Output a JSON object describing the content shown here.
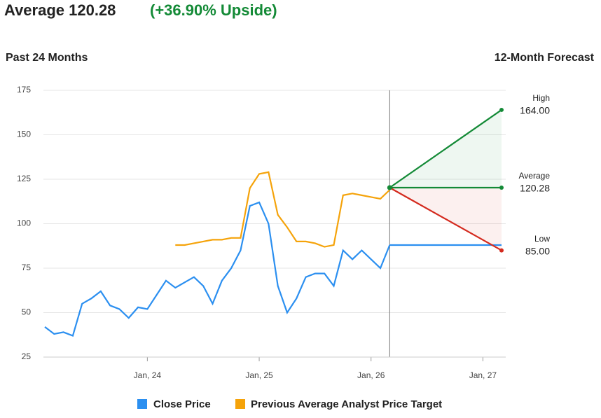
{
  "chart_data": {
    "type": "line",
    "title": "Average 120.28",
    "title_highlight": "(+36.90% Upside)",
    "subtitle_left": "Past 24 Months",
    "subtitle_right": "12-Month Forecast",
    "xlim": [
      "2023-02",
      "2027-03"
    ],
    "xticks": [
      {
        "value": "2024-01",
        "label": "Jan, 24"
      },
      {
        "value": "2025-01",
        "label": "Jan, 25"
      },
      {
        "value": "2026-01",
        "label": "Jan, 26"
      },
      {
        "value": "2027-01",
        "label": "Jan, 27"
      }
    ],
    "ylim": [
      25,
      175
    ],
    "yticks": [
      25,
      50,
      75,
      100,
      125,
      150,
      175
    ],
    "grid": true,
    "series": [
      {
        "name": "Close Price",
        "color": "#2b8ff0",
        "x": [
          "2023-02",
          "2023-03",
          "2023-04",
          "2023-05",
          "2023-06",
          "2023-07",
          "2023-08",
          "2023-09",
          "2023-10",
          "2023-11",
          "2023-12",
          "2024-01",
          "2024-02",
          "2024-03",
          "2024-04",
          "2024-05",
          "2024-06",
          "2024-07",
          "2024-08",
          "2024-09",
          "2024-10",
          "2024-11",
          "2024-12",
          "2025-01",
          "2025-02",
          "2025-03",
          "2025-04",
          "2025-05",
          "2025-06",
          "2025-07",
          "2025-08",
          "2025-09",
          "2025-10",
          "2025-11",
          "2025-12",
          "2026-01",
          "2026-02",
          "2026-03"
        ],
        "values": [
          42,
          38,
          39,
          37,
          55,
          58,
          62,
          54,
          52,
          47,
          53,
          52,
          60,
          68,
          64,
          67,
          70,
          65,
          55,
          68,
          75,
          85,
          110,
          112,
          100,
          65,
          50,
          58,
          70,
          72,
          72,
          65,
          85,
          80,
          85,
          80,
          75,
          88
        ]
      },
      {
        "name": "Previous Average Analyst Price Target",
        "color": "#f5a30a",
        "x": [
          "2024-04",
          "2024-05",
          "2024-06",
          "2024-07",
          "2024-08",
          "2024-09",
          "2024-10",
          "2024-11",
          "2024-12",
          "2025-01",
          "2025-02",
          "2025-03",
          "2025-04",
          "2025-05",
          "2025-06",
          "2025-07",
          "2025-08",
          "2025-09",
          "2025-10",
          "2025-11",
          "2025-12",
          "2026-01",
          "2026-02",
          "2026-03"
        ],
        "values": [
          88,
          88,
          89,
          90,
          91,
          91,
          92,
          92,
          120,
          128,
          129,
          105,
          98,
          90,
          90,
          89,
          87,
          88,
          116,
          117,
          116,
          115,
          114,
          119
        ]
      }
    ],
    "forecast": {
      "start": "2026-03",
      "end": "2027-03",
      "items": [
        {
          "name": "High",
          "value": 164,
          "value_label": "164.00",
          "color": "#138a36"
        },
        {
          "name": "Average",
          "value": 120.28,
          "value_label": "120.28",
          "color": "#138a36"
        },
        {
          "name": "Low",
          "value": 85,
          "value_label": "85.00",
          "color": "#d42a1e"
        }
      ]
    }
  }
}
